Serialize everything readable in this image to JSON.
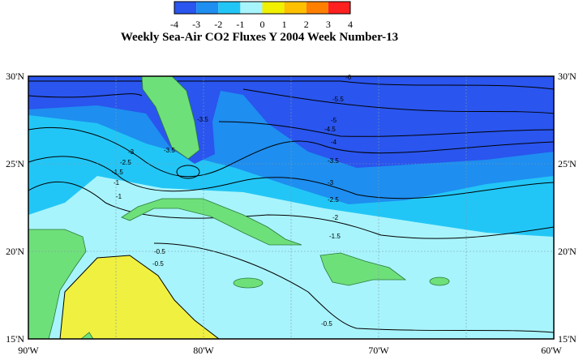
{
  "colorbar": {
    "ticks": [
      "-4",
      "-3",
      "-2",
      "-1",
      "0",
      "1",
      "2",
      "3",
      "4"
    ],
    "colors": [
      "#2a55ee",
      "#1e8ef0",
      "#22c6f6",
      "#a8f4fc",
      "#f0f000",
      "#ffc000",
      "#ff8000",
      "#ff2020"
    ]
  },
  "title": "Weekly Sea-Air CO2 Fluxes Y 2004 Week Number-13",
  "lat_labels": [
    "30'N",
    "25'N",
    "20'N",
    "15'N"
  ],
  "lon_labels": [
    "90'W",
    "80'W",
    "70'W",
    "60'W"
  ],
  "contour_labels": [
    "-6",
    "-5.5",
    "-5",
    "-4.5",
    "-4",
    "-3.5",
    "-3",
    "-2.5",
    "-2",
    "-1.5",
    "-1",
    "-0.5",
    "-3.5",
    "-3.5",
    "-3",
    "-2.5",
    "-1.5",
    "-1",
    "-0.5",
    "-0.5"
  ]
}
